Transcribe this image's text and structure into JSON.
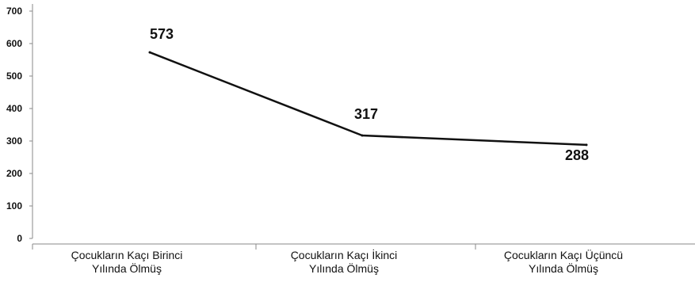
{
  "chart_data": {
    "type": "line",
    "categories": [
      [
        "Çocukların Kaçı Birinci",
        "Yılında Ölmüş"
      ],
      [
        "Çocukların Kaçı İkinci",
        "Yılında Ölmüş"
      ],
      [
        "Çocukların Kaçı Üçüncü",
        "Yılında Ölmüş"
      ]
    ],
    "values": [
      573,
      317,
      288
    ],
    "data_labels": [
      "573",
      "317",
      "288"
    ],
    "yticks": [
      0,
      100,
      200,
      300,
      400,
      500,
      600,
      700
    ],
    "ytick_labels": [
      "0",
      "100",
      "200",
      "300",
      "400",
      "500",
      "600",
      "700"
    ],
    "ylim": [
      0,
      700
    ],
    "grid": false,
    "legend": "none",
    "colors": {
      "line": "#111111",
      "axis": "#888888",
      "text": "#111111"
    }
  }
}
